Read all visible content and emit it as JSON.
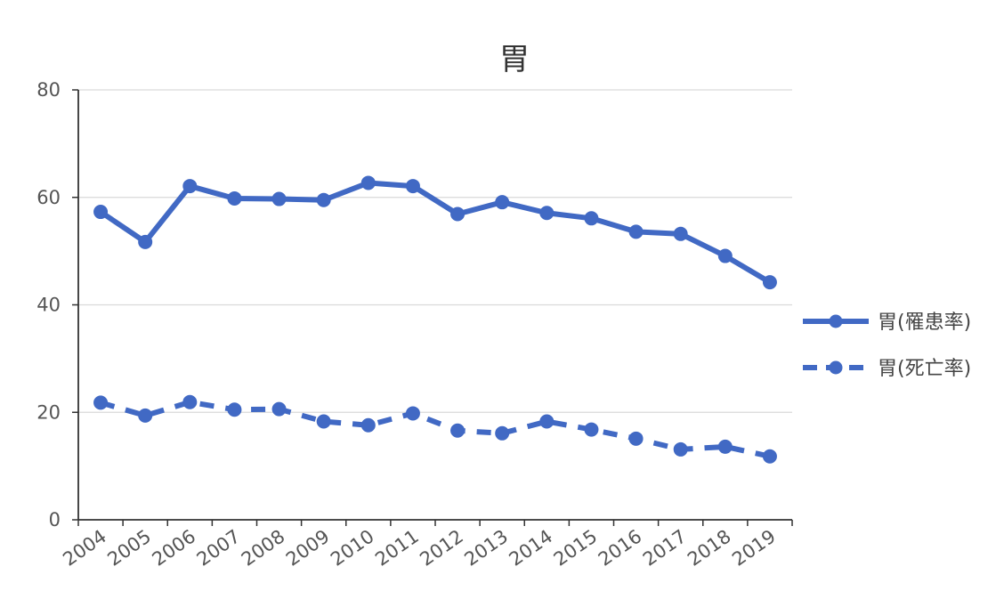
{
  "chart_data": {
    "type": "line",
    "title": "胃",
    "xlabel": "",
    "ylabel": "",
    "categories": [
      "2004",
      "2005",
      "2006",
      "2007",
      "2008",
      "2009",
      "2010",
      "2011",
      "2012",
      "2013",
      "2014",
      "2015",
      "2016",
      "2017",
      "2018",
      "2019"
    ],
    "ylim": [
      0,
      80
    ],
    "yticks": [
      0,
      20,
      40,
      60,
      80
    ],
    "grid": true,
    "legend": "right",
    "series": [
      {
        "name": "胃(罹患率)",
        "style": "solid",
        "color": "#4169c4",
        "values": [
          57.3,
          51.7,
          62.1,
          59.8,
          59.7,
          59.5,
          62.7,
          62.1,
          56.9,
          59.1,
          57.1,
          56.1,
          53.6,
          53.2,
          49.1,
          44.2
        ]
      },
      {
        "name": "胃(死亡率)",
        "style": "dashed",
        "color": "#4169c4",
        "values": [
          21.8,
          19.4,
          21.9,
          20.5,
          20.6,
          18.3,
          17.6,
          19.8,
          16.6,
          16.1,
          18.3,
          16.8,
          15.1,
          13.1,
          13.6,
          11.8
        ]
      }
    ]
  }
}
